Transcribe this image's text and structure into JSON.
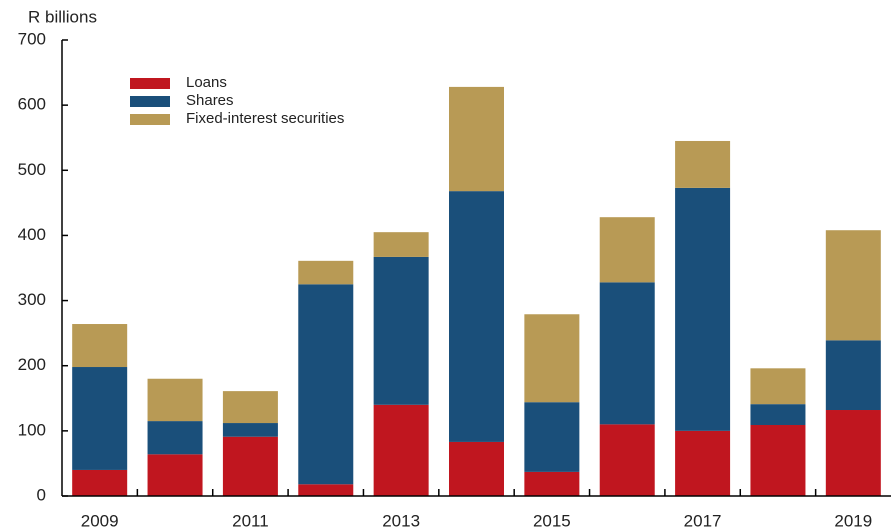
{
  "chart_data": {
    "type": "bar",
    "stacked": true,
    "ylabel": "R billions",
    "categories": [
      "2009",
      null,
      "2011",
      null,
      "2013",
      null,
      "2015",
      null,
      "2017",
      null,
      "2019"
    ],
    "series": [
      {
        "name": "Loans",
        "color": "#c0161f",
        "values": [
          40,
          64,
          91,
          18,
          140,
          83,
          37,
          110,
          100,
          109,
          132
        ]
      },
      {
        "name": "Shares",
        "color": "#1a4f7a",
        "values": [
          158,
          51,
          21,
          307,
          227,
          385,
          107,
          218,
          373,
          32,
          107
        ]
      },
      {
        "name": "Fixed-interest securities",
        "color": "#b89a55",
        "values": [
          66,
          65,
          49,
          36,
          38,
          160,
          135,
          100,
          72,
          55,
          169
        ]
      }
    ],
    "ylim": [
      0,
      700
    ],
    "yticks": [
      0,
      100,
      200,
      300,
      400,
      500,
      600,
      700
    ],
    "grid": false,
    "legend": "upper left"
  }
}
